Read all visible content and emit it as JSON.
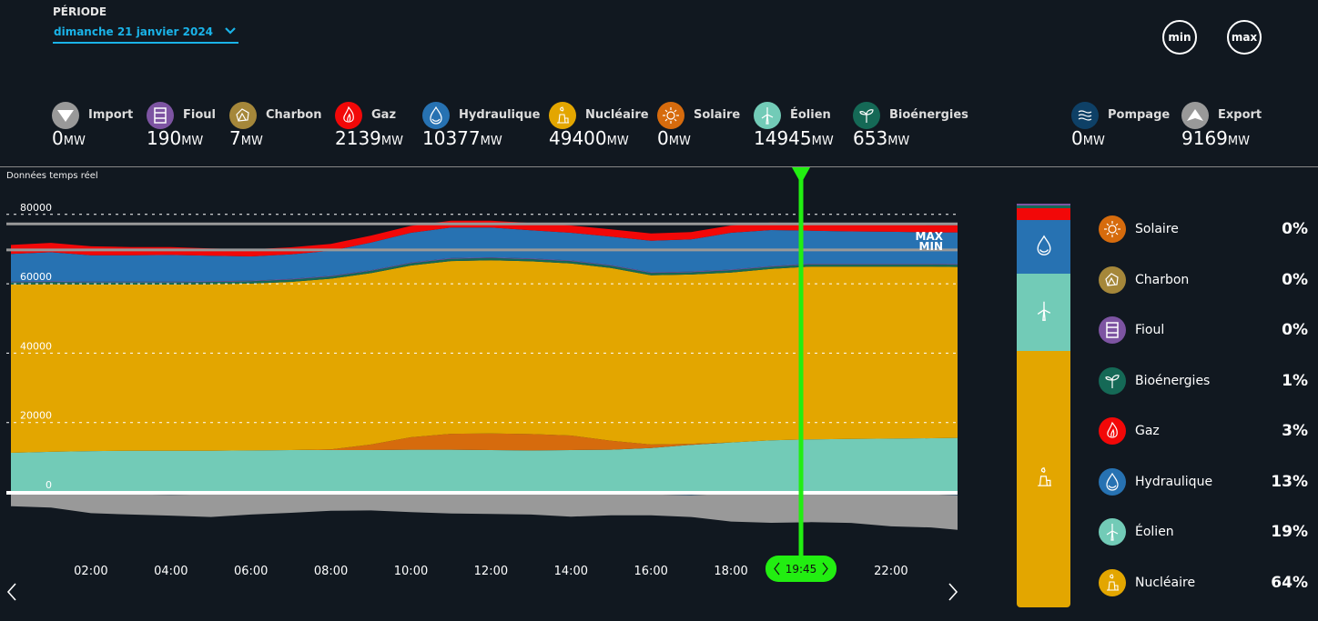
{
  "periode": {
    "label": "PÉRIODE",
    "selected": "dimanche 21 janvier 2024",
    "accent": "#1ab3e8"
  },
  "buttons": {
    "min": "min",
    "max": "max"
  },
  "unit": "MW",
  "productions": [
    {
      "key": "import",
      "label": "Import",
      "value": "0",
      "color": "#999999",
      "icon": "import-arrow-down-icon"
    },
    {
      "key": "fioul",
      "label": "Fioul",
      "value": "190",
      "color": "#7d54a2",
      "icon": "oil-barrel-icon"
    },
    {
      "key": "charbon",
      "label": "Charbon",
      "value": "7",
      "color": "#a5873a",
      "icon": "coal-rock-icon"
    },
    {
      "key": "gaz",
      "label": "Gaz",
      "value": "2139",
      "color": "#f20808",
      "icon": "flame-icon"
    },
    {
      "key": "hydraulique",
      "label": "Hydraulique",
      "value": "10377",
      "color": "#2772b2",
      "icon": "water-drop-icon"
    },
    {
      "key": "nucleaire",
      "label": "Nucléaire",
      "value": "49400",
      "color": "#e3a600",
      "icon": "nuclear-plant-icon"
    },
    {
      "key": "solaire",
      "label": "Solaire",
      "value": "0",
      "color": "#d66b0d",
      "icon": "sun-icon"
    },
    {
      "key": "eolien",
      "label": "Éolien",
      "value": "14945",
      "color": "#72cbb7",
      "icon": "wind-turbine-icon"
    },
    {
      "key": "bioenergies",
      "label": "Bioénergies",
      "value": "653",
      "color": "#156956",
      "icon": "sprout-icon"
    },
    {
      "key": "pompage",
      "label": "Pompage",
      "value": "0",
      "color": "#0e4066",
      "icon": "waves-icon"
    },
    {
      "key": "export",
      "label": "Export",
      "value": "9169",
      "color": "#999999",
      "icon": "export-arrow-up-icon"
    }
  ],
  "realtime_label": "Données temps réel",
  "cursor": {
    "time": "19:45",
    "color": "#22ee11"
  },
  "max_label": "MAX",
  "min_label": "MIN",
  "mix": [
    {
      "key": "solaire",
      "label": "Solaire",
      "pct": "0%",
      "color": "#d66b0d",
      "icon": "sun-icon"
    },
    {
      "key": "charbon",
      "label": "Charbon",
      "pct": "0%",
      "color": "#a5873a",
      "icon": "coal-rock-icon"
    },
    {
      "key": "fioul",
      "label": "Fioul",
      "pct": "0%",
      "color": "#7d54a2",
      "icon": "oil-barrel-icon"
    },
    {
      "key": "bioenergies",
      "label": "Bioénergies",
      "pct": "1%",
      "color": "#156956",
      "icon": "sprout-icon"
    },
    {
      "key": "gaz",
      "label": "Gaz",
      "pct": "3%",
      "color": "#f20808",
      "icon": "flame-icon"
    },
    {
      "key": "hydraulique",
      "label": "Hydraulique",
      "pct": "13%",
      "color": "#2772b2",
      "icon": "water-drop-icon"
    },
    {
      "key": "eolien",
      "label": "Éolien",
      "pct": "19%",
      "color": "#72cbb7",
      "icon": "wind-turbine-icon"
    },
    {
      "key": "nucleaire",
      "label": "Nucléaire",
      "pct": "64%",
      "color": "#e3a600",
      "icon": "nuclear-plant-icon"
    }
  ],
  "chart_data": {
    "type": "area",
    "title": "Données temps réel",
    "xlabel": "",
    "ylabel": "MW",
    "x_ticks": [
      "02:00",
      "04:00",
      "06:00",
      "08:00",
      "10:00",
      "12:00",
      "14:00",
      "16:00",
      "18:00",
      "22:00"
    ],
    "y_ticks": [
      0,
      20000,
      40000,
      60000,
      80000
    ],
    "ylim": [
      -16000,
      82000
    ],
    "xlim_hours": [
      0,
      23.75
    ],
    "grid": "dotted horizontal",
    "max_line": 77000,
    "min_line": 69500,
    "cursor_hour": 19.75,
    "x_hours": [
      0,
      1,
      2,
      3,
      4,
      5,
      6,
      7,
      8,
      9,
      10,
      11,
      12,
      13,
      14,
      15,
      16,
      17,
      18,
      19,
      20,
      21,
      22,
      23,
      23.75
    ],
    "series": [
      {
        "name": "Éolien",
        "color": "#72cbb7",
        "values": [
          11000,
          11300,
          11500,
          11600,
          11600,
          11600,
          11700,
          11800,
          11800,
          11800,
          11900,
          11900,
          11800,
          11700,
          11800,
          11900,
          12400,
          13300,
          14000,
          14600,
          14900,
          15000,
          15100,
          15200,
          15300
        ]
      },
      {
        "name": "Solaire",
        "color": "#d66b0d",
        "values": [
          0,
          0,
          0,
          0,
          0,
          0,
          0,
          0,
          200,
          1600,
          3600,
          4600,
          4800,
          4700,
          4200,
          2600,
          1000,
          300,
          0,
          0,
          0,
          0,
          0,
          0,
          0
        ]
      },
      {
        "name": "Nucléaire",
        "color": "#e3a600",
        "values": [
          48500,
          48300,
          48000,
          47900,
          47900,
          48000,
          48100,
          48500,
          49200,
          49400,
          49500,
          49800,
          49900,
          49800,
          49600,
          49800,
          48800,
          48800,
          49000,
          49400,
          49800,
          49700,
          49600,
          49500,
          49300
        ]
      },
      {
        "name": "Bioénergies",
        "color": "#156956",
        "values": [
          650,
          650,
          650,
          650,
          650,
          650,
          650,
          650,
          650,
          650,
          650,
          650,
          650,
          650,
          650,
          650,
          650,
          650,
          650,
          650,
          650,
          650,
          650,
          650,
          650
        ]
      },
      {
        "name": "Fioul",
        "color": "#7d54a2",
        "values": [
          190,
          190,
          190,
          190,
          190,
          190,
          190,
          190,
          190,
          190,
          190,
          190,
          190,
          190,
          190,
          190,
          190,
          190,
          190,
          190,
          190,
          190,
          190,
          190,
          190
        ]
      },
      {
        "name": "Hydraulique",
        "color": "#2772b2",
        "values": [
          8000,
          8400,
          7600,
          7600,
          7700,
          7400,
          7000,
          7100,
          7200,
          8000,
          8600,
          8800,
          8600,
          8100,
          8000,
          8200,
          9100,
          9300,
          10600,
          10400,
          9500,
          9300,
          9200,
          9000,
          9100
        ]
      },
      {
        "name": "Gaz",
        "color": "#f20808",
        "values": [
          2600,
          2700,
          2600,
          2400,
          2300,
          2100,
          2000,
          2000,
          2000,
          2000,
          2000,
          2000,
          2000,
          2100,
          2100,
          2100,
          2100,
          2100,
          2100,
          2139,
          2100,
          2100,
          2100,
          2100,
          2100
        ]
      },
      {
        "name": "Pompage",
        "color": "#0e4066",
        "values": [
          -400,
          -600,
          -900,
          -1000,
          -1100,
          -1000,
          -600,
          -200,
          -100,
          -200,
          -600,
          -300,
          -100,
          0,
          -400,
          -500,
          -1000,
          -1200,
          -800,
          0,
          0,
          -300,
          -900,
          -1000,
          -1200
        ]
      },
      {
        "name": "Export",
        "color": "#999999",
        "values": [
          -4000,
          -4200,
          -5500,
          -5800,
          -6000,
          -6500,
          -6200,
          -6100,
          -5600,
          -5400,
          -5500,
          -6200,
          -6500,
          -6800,
          -7000,
          -6500,
          -6000,
          -6300,
          -8000,
          -9169,
          -9000,
          -8900,
          -9300,
          -9500,
          -10000
        ]
      }
    ]
  }
}
